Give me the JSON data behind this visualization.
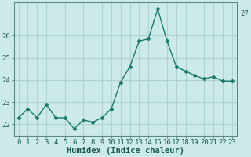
{
  "x": [
    0,
    1,
    2,
    3,
    4,
    5,
    6,
    7,
    8,
    9,
    10,
    11,
    12,
    13,
    14,
    15,
    16,
    17,
    18,
    19,
    20,
    21,
    22,
    23
  ],
  "y": [
    22.3,
    22.7,
    22.3,
    22.9,
    22.3,
    22.3,
    21.8,
    22.2,
    22.1,
    22.3,
    22.7,
    23.9,
    24.6,
    25.75,
    25.85,
    27.2,
    25.75,
    24.6,
    24.4,
    24.2,
    24.05,
    24.15,
    23.95,
    23.95
  ],
  "line_color": "#1a7a6e",
  "marker": "D",
  "marker_size": 2.5,
  "linewidth": 1.0,
  "background_color": "#cceae8",
  "grid_color": "#afd4d0",
  "xlabel": "Humidex (Indice chaleur)",
  "xlabel_fontsize": 7.5,
  "ylabel_ticks": [
    22,
    23,
    24,
    25,
    26
  ],
  "ylim": [
    21.5,
    27.5
  ],
  "xlim": [
    -0.5,
    23.5
  ],
  "tick_fontsize": 6.5
}
